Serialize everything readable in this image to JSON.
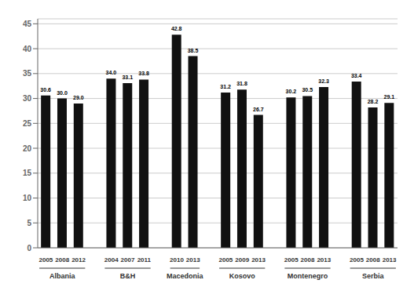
{
  "chart_data": {
    "type": "bar",
    "groups": [
      {
        "name": "Albania",
        "categories": [
          "2005",
          "2008",
          "2012"
        ],
        "values": [
          30.6,
          30.0,
          29.0
        ]
      },
      {
        "name": "B&H",
        "categories": [
          "2004",
          "2007",
          "2011"
        ],
        "values": [
          34.0,
          33.1,
          33.8
        ]
      },
      {
        "name": "Macedonia",
        "categories": [
          "2010",
          "2013"
        ],
        "values": [
          42.8,
          38.5
        ]
      },
      {
        "name": "Kosovo",
        "categories": [
          "2005",
          "2009",
          "2013"
        ],
        "values": [
          31.2,
          31.8,
          26.7
        ]
      },
      {
        "name": "Montenegro",
        "categories": [
          "2005",
          "2008",
          "2013"
        ],
        "values": [
          30.2,
          30.5,
          32.3
        ]
      },
      {
        "name": "Serbia",
        "categories": [
          "2005",
          "2008",
          "2013"
        ],
        "values": [
          33.4,
          28.2,
          29.1
        ]
      }
    ],
    "color": "#111111",
    "ylim": [
      0,
      46
    ],
    "yticks": [
      0,
      5,
      10,
      15,
      20,
      25,
      30,
      35,
      40,
      45
    ],
    "grid": true,
    "data_labels": true
  }
}
